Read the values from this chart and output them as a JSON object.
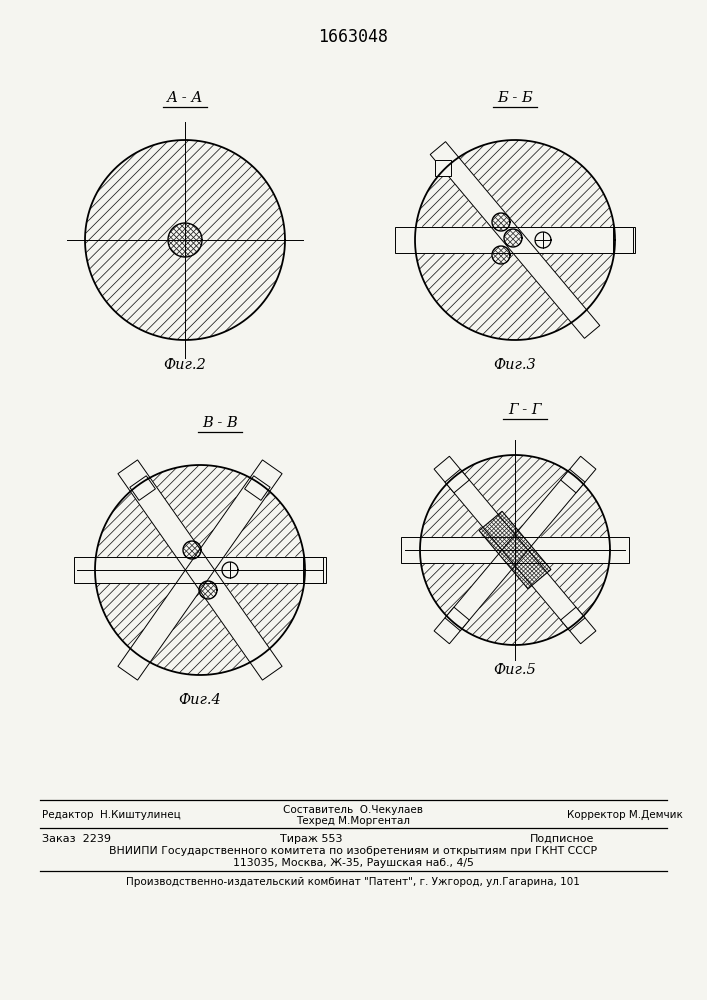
{
  "title": "1663048",
  "fig2_label": "А - А",
  "fig3_label": "Б - Б",
  "fig4_label": "В - В",
  "fig5_label": "Г - Г",
  "fig2_caption": "Фиг.2",
  "fig3_caption": "Фиг.3",
  "fig4_caption": "Фиг.4",
  "fig5_caption": "Фиг.5",
  "bg_color": "#f5f5f0",
  "line_color": "#000000",
  "footer_line1_col1": "Редактор  Н.Киштулинец",
  "footer_line1_col2": "Составитель  О.Чекулаев",
  "footer_line1_col3": "Корректор М.Демчик",
  "footer_line1_col2b": "Техред М.Моргентал",
  "footer_line2_col1": "Заказ  2239",
  "footer_line2_col2": "Тираж 553",
  "footer_line2_col3": "Подписное",
  "footer_line3": "ВНИИПИ Государственного комитета по изобретениям и открытиям при ГКНТ СССР",
  "footer_line4": "113035, Москва, Ж-35, Раушская наб., 4/5",
  "footer_line5": "Производственно-издательский комбинат \"Патент\", г. Ужгород, ул.Гагарина, 101"
}
